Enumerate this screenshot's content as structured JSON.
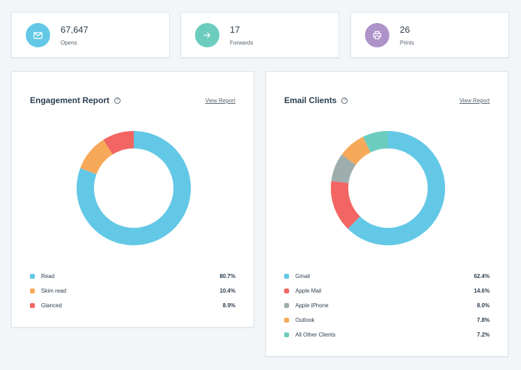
{
  "stats": [
    {
      "value": "67,647",
      "label": "Opens",
      "icon": "mail-icon",
      "color": "#63c8e6"
    },
    {
      "value": "17",
      "label": "Forwards",
      "icon": "arrow-right-icon",
      "color": "#6ccdbf"
    },
    {
      "value": "26",
      "label": "Prints",
      "icon": "printer-icon",
      "color": "#ae93c9"
    }
  ],
  "engagement": {
    "title": "Engagement Report",
    "link": "View Report",
    "legend": [
      {
        "label": "Read",
        "value": "80.7%",
        "color": "#63c8e6"
      },
      {
        "label": "Skim read",
        "value": "10.4%",
        "color": "#f7a95a"
      },
      {
        "label": "Glanced",
        "value": "8.9%",
        "color": "#f26563"
      }
    ],
    "chart_data": {
      "type": "pie",
      "categories": [
        "Read",
        "Skim read",
        "Glanced"
      ],
      "values": [
        80.7,
        10.4,
        8.9
      ]
    }
  },
  "clients": {
    "title": "Email Clients",
    "link": "View Report",
    "legend": [
      {
        "label": "Gmail",
        "value": "62.4%",
        "color": "#63c8e6"
      },
      {
        "label": "Apple Mail",
        "value": "14.6%",
        "color": "#f26563"
      },
      {
        "label": "Apple iPhone",
        "value": "8.0%",
        "color": "#9eaeac"
      },
      {
        "label": "Outlook",
        "value": "7.8%",
        "color": "#f7a95a"
      },
      {
        "label": "All Other Clients",
        "value": "7.2%",
        "color": "#6ccdbf"
      }
    ],
    "chart_data": {
      "type": "pie",
      "categories": [
        "Gmail",
        "Apple Mail",
        "Apple iPhone",
        "Outlook",
        "All Other Clients"
      ],
      "values": [
        62.4,
        14.6,
        8.0,
        7.8,
        7.2
      ]
    }
  }
}
